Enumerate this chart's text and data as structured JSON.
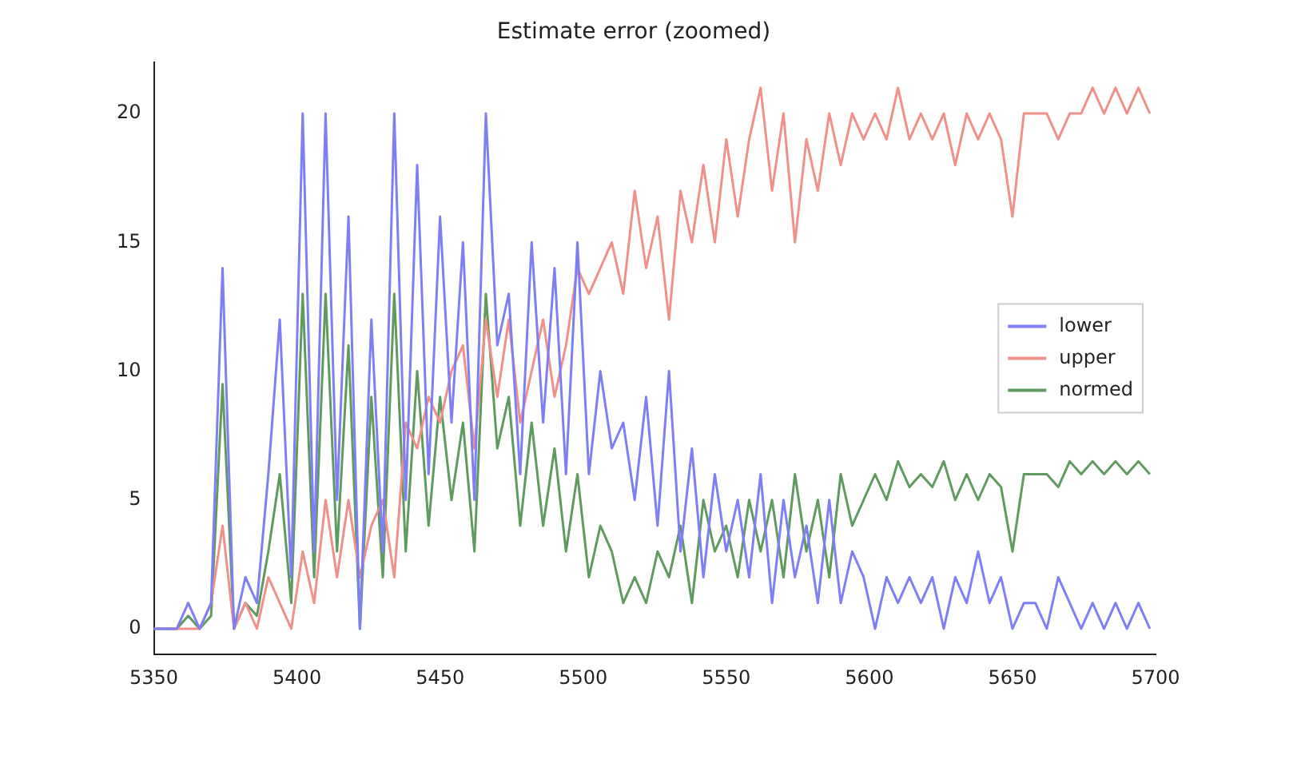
{
  "chart_data": {
    "type": "line",
    "title": "Estimate error (zoomed)",
    "x": [
      5350,
      5354,
      5358,
      5362,
      5366,
      5370,
      5374,
      5378,
      5382,
      5386,
      5390,
      5394,
      5398,
      5402,
      5406,
      5410,
      5414,
      5418,
      5422,
      5426,
      5430,
      5434,
      5438,
      5442,
      5446,
      5450,
      5454,
      5458,
      5462,
      5466,
      5470,
      5474,
      5478,
      5482,
      5486,
      5490,
      5494,
      5498,
      5502,
      5506,
      5510,
      5514,
      5518,
      5522,
      5526,
      5530,
      5534,
      5538,
      5542,
      5546,
      5550,
      5554,
      5558,
      5562,
      5566,
      5570,
      5574,
      5578,
      5582,
      5586,
      5590,
      5594,
      5598,
      5602,
      5606,
      5610,
      5614,
      5618,
      5622,
      5626,
      5630,
      5634,
      5638,
      5642,
      5646,
      5650,
      5654,
      5658,
      5662,
      5666,
      5670,
      5674,
      5678,
      5682,
      5686,
      5690,
      5694,
      5698
    ],
    "series": [
      {
        "name": "lower",
        "color": "#7f7ff5",
        "values": [
          0,
          0,
          0,
          1,
          0,
          1,
          14,
          0,
          2,
          1,
          6,
          12,
          2,
          20,
          3,
          20,
          5,
          16,
          0,
          12,
          3,
          20,
          5,
          18,
          6,
          16,
          8,
          15,
          5,
          20,
          11,
          13,
          6,
          15,
          8,
          14,
          6,
          15,
          6,
          10,
          7,
          8,
          5,
          9,
          4,
          10,
          3,
          7,
          2,
          6,
          3,
          5,
          2,
          6,
          1,
          5,
          2,
          4,
          1,
          5,
          1,
          3,
          2,
          0,
          2,
          1,
          2,
          1,
          2,
          0,
          2,
          1,
          3,
          1,
          2,
          0,
          1,
          1,
          0,
          2,
          1,
          0,
          1,
          0,
          1,
          0,
          1,
          0
        ]
      },
      {
        "name": "upper",
        "color": "#f0908a",
        "values": [
          0,
          0,
          0,
          0,
          0,
          1,
          4,
          0,
          1,
          0,
          2,
          1,
          0,
          3,
          1,
          5,
          2,
          5,
          2,
          4,
          5,
          2,
          8,
          7,
          9,
          8,
          10,
          11,
          7,
          12,
          9,
          12,
          8,
          10,
          12,
          9,
          11,
          14,
          13,
          14,
          15,
          13,
          17,
          14,
          16,
          12,
          17,
          15,
          18,
          15,
          19,
          16,
          19,
          21,
          17,
          20,
          15,
          19,
          17,
          20,
          18,
          20,
          19,
          20,
          19,
          21,
          19,
          20,
          19,
          20,
          18,
          20,
          19,
          20,
          19,
          16,
          20,
          20,
          20,
          19,
          20,
          20,
          21,
          20,
          21,
          20,
          21,
          20
        ]
      },
      {
        "name": "normed",
        "color": "#5f9a5f",
        "values": [
          0,
          0,
          0,
          0.5,
          0,
          0.5,
          9.5,
          0,
          1,
          0.5,
          3,
          6,
          1,
          13,
          2,
          13,
          3,
          11,
          0,
          9,
          2,
          13,
          3,
          10,
          4,
          9,
          5,
          8,
          3,
          13,
          7,
          9,
          4,
          8,
          4,
          7,
          3,
          6,
          2,
          4,
          3,
          1,
          2,
          1,
          3,
          2,
          4,
          1,
          5,
          3,
          4,
          2,
          5,
          3,
          5,
          2,
          6,
          3,
          5,
          2,
          6,
          4,
          5,
          6,
          5,
          6.5,
          5.5,
          6,
          5.5,
          6.5,
          5,
          6,
          5,
          6,
          5.5,
          3,
          6,
          6,
          6,
          5.5,
          6.5,
          6,
          6.5,
          6,
          6.5,
          6,
          6.5,
          6
        ]
      }
    ],
    "xlim": [
      5350,
      5700
    ],
    "xticks": [
      5350,
      5400,
      5450,
      5500,
      5550,
      5600,
      5650,
      5700
    ],
    "ylim": [
      -1,
      22
    ],
    "yticks": [
      0,
      5,
      10,
      15,
      20
    ],
    "grid": false,
    "legend": "center right",
    "marker": "none",
    "line_style": "solid"
  }
}
